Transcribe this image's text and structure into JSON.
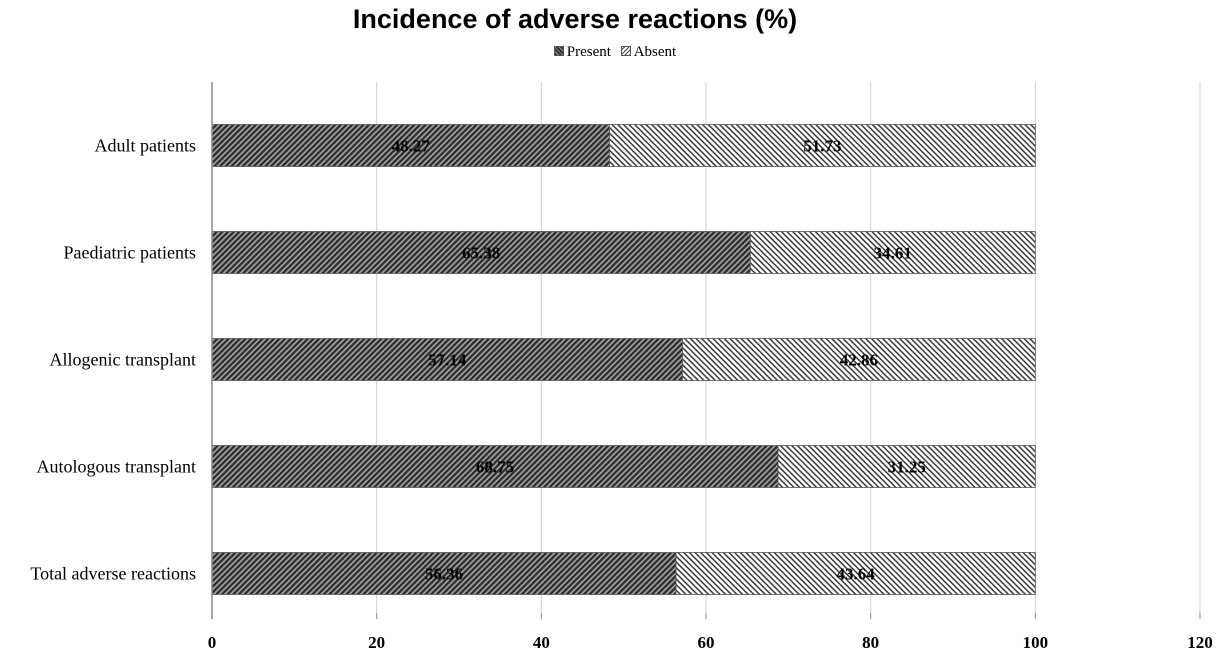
{
  "chart_data": {
    "type": "bar",
    "orientation": "horizontal",
    "stacked": true,
    "title": "Incidence of adverse reactions (%)",
    "categories": [
      "Adult patients",
      "Paediatric patients",
      "Allogenic transplant",
      "Autologous transplant",
      "Total adverse reactions"
    ],
    "series": [
      {
        "name": "Present",
        "values": [
          48.27,
          65.38,
          57.14,
          68.75,
          56.36
        ],
        "data_labels": [
          "48.27",
          "65.38",
          "57.14",
          "68.75",
          "56.36"
        ],
        "pattern": "dark-diagonal-hatch"
      },
      {
        "name": "Absent",
        "values": [
          51.73,
          34.61,
          42.86,
          31.25,
          43.64
        ],
        "data_labels": [
          "51.73",
          "34.61",
          "42.86",
          "31.25",
          "43.64"
        ],
        "pattern": "light-diagonal-hatch"
      }
    ],
    "xlim": [
      0,
      120
    ],
    "xticks": [
      "0",
      "20",
      "40",
      "60",
      "80",
      "100",
      "120"
    ],
    "grid": "vertical",
    "legend_position": "top-center"
  }
}
